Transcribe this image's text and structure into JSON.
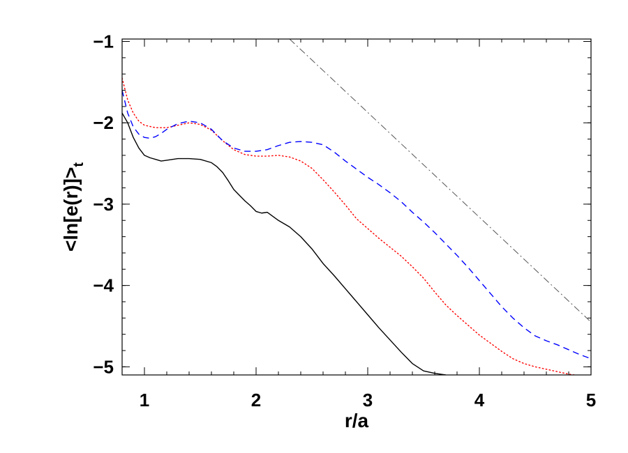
{
  "chart_data": {
    "type": "line",
    "xlabel": "r/a",
    "ylabel": {
      "main": "<ln[e(r)]>",
      "subscript": "t"
    },
    "xlim": [
      0.8,
      5.0
    ],
    "ylim": [
      -5.1,
      -0.97
    ],
    "x_ticks": [
      {
        "value": 1,
        "label": "1"
      },
      {
        "value": 2,
        "label": "2"
      },
      {
        "value": 3,
        "label": "3"
      },
      {
        "value": 4,
        "label": "4"
      },
      {
        "value": 5,
        "label": "5"
      }
    ],
    "y_ticks": [
      {
        "value": -1,
        "label": "−1"
      },
      {
        "value": -2,
        "label": "−2"
      },
      {
        "value": -3,
        "label": "−3"
      },
      {
        "value": -4,
        "label": "−4"
      },
      {
        "value": -5,
        "label": "−5"
      }
    ],
    "x_minor_step": 0.2,
    "y_minor_step": 0.2,
    "grid": false,
    "legend": "none",
    "series": [
      {
        "id": "solid-black",
        "color": "#000000",
        "dash": "solid",
        "points": [
          [
            0.8,
            -1.88
          ],
          [
            0.85,
            -2.0
          ],
          [
            0.9,
            -2.18
          ],
          [
            0.95,
            -2.31
          ],
          [
            1.0,
            -2.4
          ],
          [
            1.05,
            -2.43
          ],
          [
            1.1,
            -2.45
          ],
          [
            1.15,
            -2.47
          ],
          [
            1.2,
            -2.46
          ],
          [
            1.3,
            -2.44
          ],
          [
            1.4,
            -2.44
          ],
          [
            1.5,
            -2.45
          ],
          [
            1.6,
            -2.49
          ],
          [
            1.65,
            -2.54
          ],
          [
            1.7,
            -2.61
          ],
          [
            1.75,
            -2.71
          ],
          [
            1.8,
            -2.82
          ],
          [
            1.85,
            -2.89
          ],
          [
            1.9,
            -2.96
          ],
          [
            1.95,
            -3.02
          ],
          [
            2.0,
            -3.09
          ],
          [
            2.05,
            -3.11
          ],
          [
            2.1,
            -3.1
          ],
          [
            2.15,
            -3.15
          ],
          [
            2.2,
            -3.2
          ],
          [
            2.3,
            -3.28
          ],
          [
            2.4,
            -3.4
          ],
          [
            2.5,
            -3.55
          ],
          [
            2.6,
            -3.73
          ],
          [
            2.7,
            -3.88
          ],
          [
            2.8,
            -4.04
          ],
          [
            2.9,
            -4.2
          ],
          [
            3.0,
            -4.36
          ],
          [
            3.1,
            -4.52
          ],
          [
            3.2,
            -4.67
          ],
          [
            3.3,
            -4.82
          ],
          [
            3.4,
            -4.96
          ],
          [
            3.5,
            -5.05
          ],
          [
            3.6,
            -5.08
          ],
          [
            3.7,
            -5.1
          ]
        ]
      },
      {
        "id": "dotted-red",
        "color": "#ff0000",
        "dash": "dotted",
        "points": [
          [
            0.8,
            -1.45
          ],
          [
            0.85,
            -1.72
          ],
          [
            0.9,
            -1.88
          ],
          [
            0.95,
            -1.98
          ],
          [
            1.0,
            -2.03
          ],
          [
            1.1,
            -2.06
          ],
          [
            1.2,
            -2.06
          ],
          [
            1.3,
            -2.03
          ],
          [
            1.4,
            -2.0
          ],
          [
            1.5,
            -2.02
          ],
          [
            1.6,
            -2.09
          ],
          [
            1.7,
            -2.22
          ],
          [
            1.8,
            -2.33
          ],
          [
            1.9,
            -2.39
          ],
          [
            2.0,
            -2.41
          ],
          [
            2.1,
            -2.41
          ],
          [
            2.2,
            -2.4
          ],
          [
            2.3,
            -2.42
          ],
          [
            2.4,
            -2.47
          ],
          [
            2.5,
            -2.56
          ],
          [
            2.6,
            -2.7
          ],
          [
            2.7,
            -2.85
          ],
          [
            2.8,
            -3.01
          ],
          [
            2.9,
            -3.18
          ],
          [
            3.0,
            -3.3
          ],
          [
            3.1,
            -3.42
          ],
          [
            3.2,
            -3.53
          ],
          [
            3.3,
            -3.64
          ],
          [
            3.4,
            -3.77
          ],
          [
            3.5,
            -3.91
          ],
          [
            3.6,
            -4.08
          ],
          [
            3.7,
            -4.24
          ],
          [
            3.8,
            -4.37
          ],
          [
            3.9,
            -4.49
          ],
          [
            4.0,
            -4.61
          ],
          [
            4.1,
            -4.71
          ],
          [
            4.2,
            -4.81
          ],
          [
            4.3,
            -4.9
          ],
          [
            4.4,
            -4.96
          ],
          [
            4.5,
            -5.0
          ],
          [
            4.6,
            -5.03
          ],
          [
            4.7,
            -5.06
          ],
          [
            4.8,
            -5.09
          ],
          [
            4.85,
            -5.1
          ]
        ]
      },
      {
        "id": "dashed-blue",
        "color": "#0000ff",
        "dash": "dashed",
        "points": [
          [
            0.8,
            -1.6
          ],
          [
            0.85,
            -1.88
          ],
          [
            0.9,
            -2.05
          ],
          [
            0.95,
            -2.14
          ],
          [
            1.0,
            -2.18
          ],
          [
            1.05,
            -2.19
          ],
          [
            1.1,
            -2.17
          ],
          [
            1.15,
            -2.13
          ],
          [
            1.2,
            -2.08
          ],
          [
            1.3,
            -2.01
          ],
          [
            1.4,
            -1.98
          ],
          [
            1.5,
            -2.0
          ],
          [
            1.6,
            -2.08
          ],
          [
            1.7,
            -2.22
          ],
          [
            1.8,
            -2.31
          ],
          [
            1.9,
            -2.35
          ],
          [
            2.0,
            -2.35
          ],
          [
            2.1,
            -2.33
          ],
          [
            2.2,
            -2.28
          ],
          [
            2.3,
            -2.24
          ],
          [
            2.4,
            -2.23
          ],
          [
            2.5,
            -2.24
          ],
          [
            2.6,
            -2.27
          ],
          [
            2.7,
            -2.36
          ],
          [
            2.8,
            -2.47
          ],
          [
            2.9,
            -2.57
          ],
          [
            3.0,
            -2.67
          ],
          [
            3.1,
            -2.76
          ],
          [
            3.2,
            -2.86
          ],
          [
            3.3,
            -2.97
          ],
          [
            3.4,
            -3.1
          ],
          [
            3.5,
            -3.22
          ],
          [
            3.6,
            -3.35
          ],
          [
            3.7,
            -3.49
          ],
          [
            3.8,
            -3.63
          ],
          [
            3.9,
            -3.78
          ],
          [
            4.0,
            -3.94
          ],
          [
            4.1,
            -4.1
          ],
          [
            4.2,
            -4.26
          ],
          [
            4.3,
            -4.4
          ],
          [
            4.4,
            -4.52
          ],
          [
            4.5,
            -4.62
          ],
          [
            4.6,
            -4.68
          ],
          [
            4.7,
            -4.73
          ],
          [
            4.8,
            -4.79
          ],
          [
            4.9,
            -4.85
          ],
          [
            5.0,
            -4.9
          ]
        ]
      },
      {
        "id": "dashdot-gray",
        "color": "#555555",
        "dash": "dashdot",
        "points": [
          [
            2.3,
            -0.97
          ],
          [
            5.0,
            -4.45
          ]
        ]
      }
    ]
  }
}
